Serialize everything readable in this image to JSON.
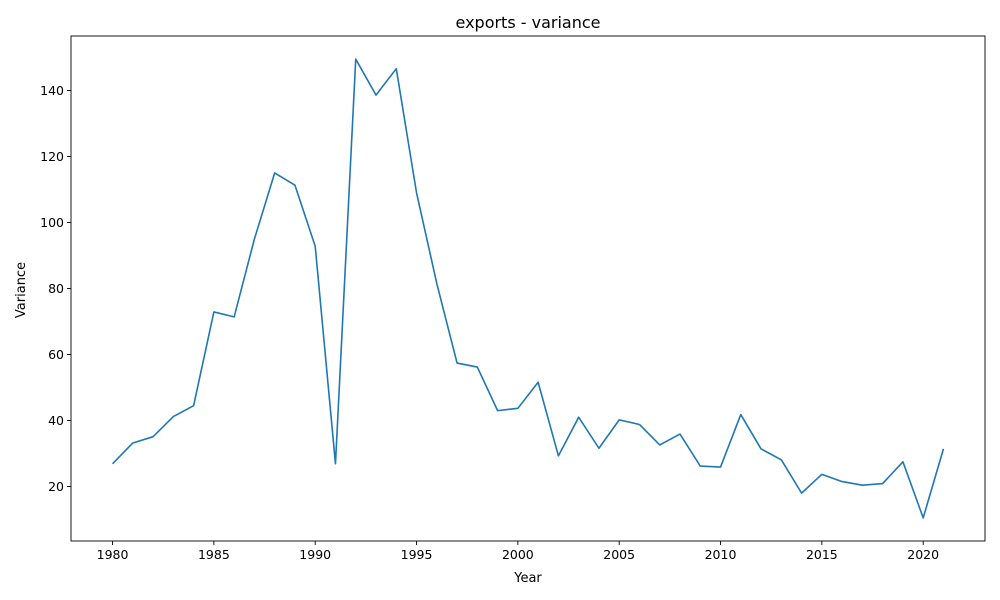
{
  "chart_data": {
    "type": "line",
    "title": "exports - variance",
    "xlabel": "Year",
    "ylabel": "Variance",
    "xlim": [
      1977.95,
      2023.05
    ],
    "ylim": [
      3.5,
      156.5
    ],
    "xticks": [
      1980,
      1985,
      1990,
      1995,
      2000,
      2005,
      2010,
      2015,
      2020
    ],
    "yticks": [
      20,
      40,
      60,
      80,
      100,
      120,
      140
    ],
    "grid": false,
    "color": "#1f77b4",
    "series": [
      {
        "x": [
          1980,
          1981,
          1982,
          1983,
          1984,
          1985,
          1986,
          1987,
          1988,
          1989,
          1990,
          1991,
          1992,
          1993,
          1994,
          1995,
          1996,
          1997,
          1998,
          1999,
          2000,
          2001,
          2002,
          2003,
          2004,
          2005,
          2006,
          2007,
          2008,
          2009,
          2010,
          2011,
          2012,
          2013,
          2014,
          2015,
          2016,
          2017,
          2018,
          2019,
          2020,
          2021
        ],
        "values": [
          26.9,
          33.2,
          35.1,
          41.2,
          44.5,
          72.9,
          71.4,
          95.0,
          115.0,
          111.3,
          92.8,
          26.9,
          149.5,
          138.6,
          146.6,
          109.0,
          81.5,
          57.4,
          56.2,
          43.0,
          43.7,
          51.6,
          29.3,
          41.0,
          31.6,
          40.2,
          38.8,
          32.6,
          35.9,
          26.2,
          25.9,
          41.8,
          31.4,
          28.1,
          18.0,
          23.7,
          21.5,
          20.4,
          20.9,
          27.5,
          10.5,
          31.4
        ]
      }
    ]
  }
}
